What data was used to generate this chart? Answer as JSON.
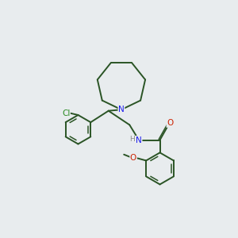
{
  "background_color": "#e8ecee",
  "bond_color": "#2a5425",
  "atom_colors": {
    "N": "#1a1aee",
    "O": "#cc2200",
    "Cl": "#2a8a22",
    "H": "#888888"
  },
  "figsize": [
    3.0,
    3.0
  ],
  "dpi": 100
}
